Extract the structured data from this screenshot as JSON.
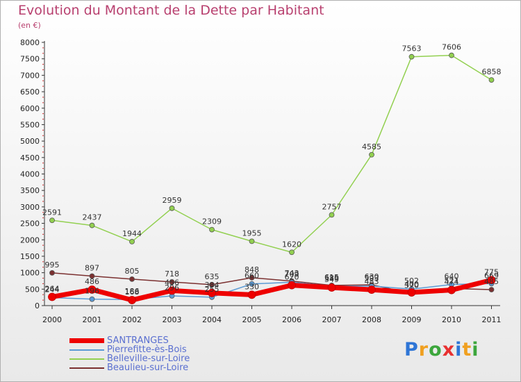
{
  "chart_data": {
    "type": "line",
    "title": "Evolution du Montant de la Dette par Habitant",
    "subtitle": "(en €)",
    "x": [
      "2000",
      "2001",
      "2002",
      "2003",
      "2004",
      "2005",
      "2006",
      "2007",
      "2008",
      "2009",
      "2010",
      "2011"
    ],
    "ylim": [
      0,
      8000
    ],
    "yticks": [
      0,
      500,
      1000,
      1500,
      2000,
      2500,
      3000,
      3500,
      4000,
      4500,
      5000,
      5500,
      6000,
      6500,
      7000,
      7500,
      8000
    ],
    "grid": false,
    "legend_position": "bottom-left",
    "series": [
      {
        "name": "SANTRANGES",
        "color": "#ee0000",
        "values": [
          264,
          486,
          168,
          456,
          384,
          330,
          620,
          549,
          483,
          400,
          474,
          775
        ],
        "labels": [
          "264",
          "486",
          "168",
          "456",
          "384",
          "330",
          "620",
          "549",
          "483",
          "400",
          "474",
          "775"
        ]
      },
      {
        "name": "Pierrefitte-ès-Bois",
        "color": "#5b9bd5",
        "values": [
          244,
          196,
          186,
          296,
          255,
          660,
          709,
          589,
          593,
          502,
          640,
          669
        ],
        "labels": [
          "244",
          "196",
          "186",
          "296",
          "255",
          "660",
          "709",
          "589",
          "593",
          "502",
          "640",
          "669"
        ]
      },
      {
        "name": "Belleville-sur-Loire",
        "color": "#92d050",
        "values": [
          2591,
          2437,
          1944,
          2959,
          2309,
          1955,
          1620,
          2757,
          4585,
          7563,
          7606,
          6858
        ],
        "labels": [
          "2591",
          "2437",
          "1944",
          "2959",
          "2309",
          "1955",
          "1620",
          "2757",
          "4585",
          "7563",
          "7606",
          "6858"
        ]
      },
      {
        "name": "Beaulieu-sur-Loire",
        "color": "#7b3030",
        "values": [
          995,
          897,
          805,
          718,
          635,
          848,
          743,
          615,
          630,
          370,
          521,
          485
        ],
        "labels": [
          "995",
          "897",
          "805",
          "718",
          "635",
          "848",
          "743",
          "615",
          "630",
          "370",
          "521",
          "485"
        ]
      }
    ]
  },
  "brand": {
    "letters": [
      "P",
      "r",
      "o",
      "x",
      "i",
      "t",
      "i"
    ],
    "colors": [
      "#2e75d6",
      "#f0a020",
      "#3ca63c",
      "#e83030",
      "#2e75d6",
      "#f0a020",
      "#3ca63c"
    ]
  }
}
